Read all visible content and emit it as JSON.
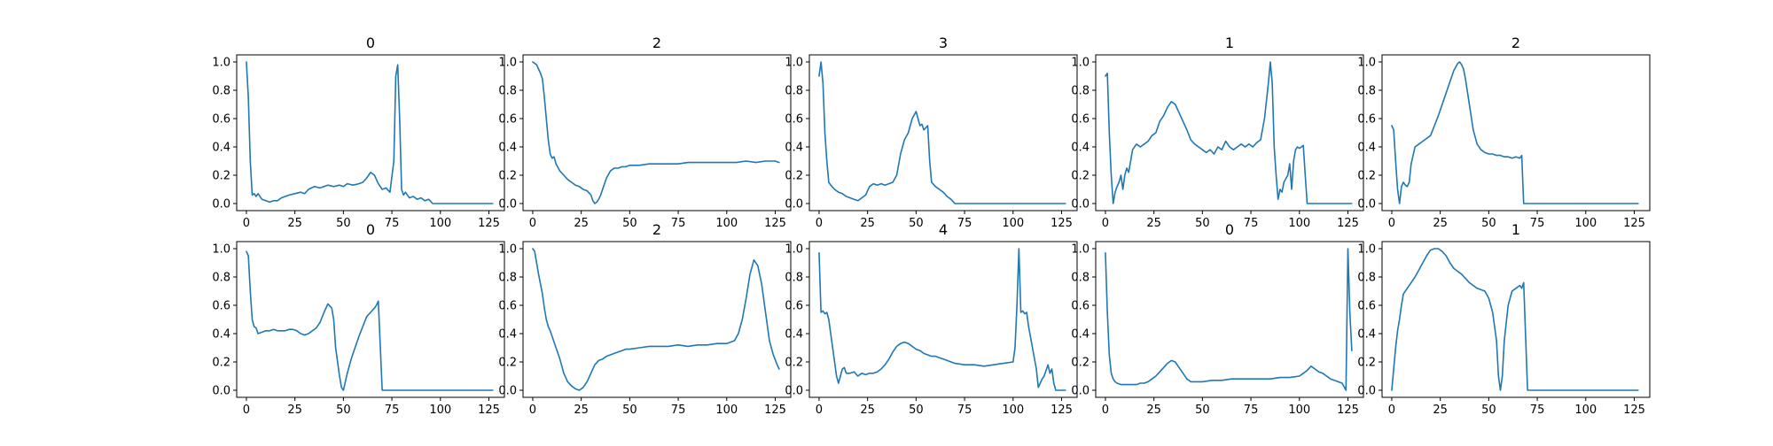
{
  "figure": {
    "background": "#ffffff",
    "line_color": "#1f77b4"
  },
  "chart_data": [
    {
      "type": "line",
      "title": "0",
      "xlim": [
        -5,
        133
      ],
      "ylim": [
        -0.05,
        1.05
      ],
      "xticks": [
        0,
        25,
        50,
        75,
        100,
        125
      ],
      "yticks": [
        0.0,
        0.2,
        0.4,
        0.6,
        0.8,
        1.0
      ],
      "x": [
        0,
        1,
        2,
        3,
        4,
        5,
        6,
        8,
        10,
        12,
        14,
        16,
        18,
        20,
        22,
        25,
        28,
        30,
        32,
        35,
        38,
        40,
        42,
        45,
        48,
        50,
        52,
        55,
        58,
        60,
        62,
        64,
        66,
        68,
        70,
        72,
        74,
        76,
        77,
        78,
        79,
        80,
        81,
        82,
        84,
        86,
        88,
        90,
        92,
        94,
        96,
        100,
        110,
        120,
        127
      ],
      "y": [
        1.0,
        0.75,
        0.3,
        0.06,
        0.07,
        0.05,
        0.07,
        0.03,
        0.02,
        0.01,
        0.02,
        0.02,
        0.04,
        0.05,
        0.06,
        0.07,
        0.08,
        0.07,
        0.1,
        0.12,
        0.11,
        0.12,
        0.13,
        0.12,
        0.13,
        0.12,
        0.14,
        0.13,
        0.14,
        0.15,
        0.18,
        0.22,
        0.2,
        0.14,
        0.1,
        0.11,
        0.08,
        0.3,
        0.9,
        0.98,
        0.6,
        0.1,
        0.06,
        0.08,
        0.04,
        0.05,
        0.03,
        0.04,
        0.02,
        0.03,
        0.0,
        0.0,
        0.0,
        0.0,
        0.0
      ]
    },
    {
      "type": "line",
      "title": "2",
      "xlim": [
        -5,
        133
      ],
      "ylim": [
        -0.05,
        1.05
      ],
      "xticks": [
        0,
        25,
        50,
        75,
        100,
        125
      ],
      "yticks": [
        0.0,
        0.2,
        0.4,
        0.6,
        0.8,
        1.0
      ],
      "x": [
        0,
        2,
        3,
        4,
        5,
        6,
        7,
        8,
        9,
        10,
        11,
        12,
        14,
        16,
        18,
        20,
        22,
        24,
        26,
        28,
        30,
        31,
        32,
        33,
        34,
        35,
        36,
        38,
        40,
        42,
        44,
        46,
        48,
        50,
        55,
        60,
        65,
        70,
        75,
        80,
        85,
        90,
        95,
        100,
        105,
        110,
        115,
        120,
        125,
        127
      ],
      "y": [
        1.0,
        0.98,
        0.95,
        0.92,
        0.88,
        0.75,
        0.6,
        0.45,
        0.35,
        0.32,
        0.33,
        0.28,
        0.23,
        0.2,
        0.17,
        0.15,
        0.13,
        0.12,
        0.1,
        0.09,
        0.06,
        0.02,
        0.0,
        0.01,
        0.03,
        0.06,
        0.1,
        0.18,
        0.23,
        0.25,
        0.25,
        0.26,
        0.26,
        0.27,
        0.27,
        0.28,
        0.28,
        0.28,
        0.28,
        0.29,
        0.29,
        0.29,
        0.29,
        0.29,
        0.29,
        0.3,
        0.29,
        0.3,
        0.3,
        0.29
      ]
    },
    {
      "type": "line",
      "title": "3",
      "xlim": [
        -5,
        133
      ],
      "ylim": [
        -0.05,
        1.05
      ],
      "xticks": [
        0,
        25,
        50,
        75,
        100,
        125
      ],
      "yticks": [
        0.0,
        0.2,
        0.4,
        0.6,
        0.8,
        1.0
      ],
      "x": [
        0,
        1,
        2,
        3,
        4,
        5,
        6,
        8,
        10,
        12,
        14,
        16,
        18,
        20,
        22,
        24,
        26,
        28,
        30,
        32,
        34,
        36,
        38,
        40,
        42,
        44,
        46,
        48,
        50,
        51,
        52,
        53,
        54,
        56,
        57,
        58,
        60,
        62,
        64,
        66,
        68,
        70,
        80,
        90,
        100,
        110,
        120,
        127
      ],
      "y": [
        0.9,
        1.0,
        0.85,
        0.5,
        0.3,
        0.15,
        0.13,
        0.1,
        0.08,
        0.07,
        0.05,
        0.04,
        0.03,
        0.02,
        0.04,
        0.06,
        0.12,
        0.14,
        0.13,
        0.14,
        0.13,
        0.14,
        0.15,
        0.2,
        0.35,
        0.45,
        0.5,
        0.6,
        0.65,
        0.6,
        0.55,
        0.56,
        0.52,
        0.55,
        0.3,
        0.15,
        0.12,
        0.1,
        0.08,
        0.05,
        0.03,
        0.0,
        0.0,
        0.0,
        0.0,
        0.0,
        0.0,
        0.0
      ]
    },
    {
      "type": "line",
      "title": "1",
      "xlim": [
        -5,
        133
      ],
      "ylim": [
        -0.05,
        1.05
      ],
      "xticks": [
        0,
        25,
        50,
        75,
        100,
        125
      ],
      "yticks": [
        0.0,
        0.2,
        0.4,
        0.6,
        0.8,
        1.0
      ],
      "x": [
        0,
        1,
        2,
        3,
        4,
        5,
        6,
        7,
        8,
        9,
        10,
        11,
        12,
        13,
        14,
        16,
        18,
        20,
        22,
        24,
        26,
        28,
        30,
        32,
        34,
        36,
        38,
        40,
        42,
        44,
        46,
        48,
        50,
        52,
        54,
        56,
        58,
        60,
        62,
        64,
        66,
        68,
        70,
        72,
        74,
        76,
        78,
        80,
        82,
        84,
        85,
        86,
        87,
        88,
        89,
        90,
        91,
        92,
        94,
        95,
        96,
        97,
        98,
        99,
        100,
        101,
        102,
        103,
        104,
        110,
        120,
        127
      ],
      "y": [
        0.9,
        0.92,
        0.5,
        0.2,
        0.0,
        0.08,
        0.12,
        0.15,
        0.2,
        0.1,
        0.2,
        0.25,
        0.22,
        0.3,
        0.38,
        0.42,
        0.4,
        0.42,
        0.44,
        0.48,
        0.5,
        0.58,
        0.62,
        0.68,
        0.72,
        0.7,
        0.64,
        0.58,
        0.52,
        0.45,
        0.42,
        0.4,
        0.38,
        0.36,
        0.38,
        0.35,
        0.4,
        0.38,
        0.44,
        0.4,
        0.38,
        0.4,
        0.42,
        0.4,
        0.42,
        0.4,
        0.43,
        0.45,
        0.6,
        0.85,
        1.0,
        0.85,
        0.4,
        0.2,
        0.03,
        0.1,
        0.08,
        0.15,
        0.2,
        0.28,
        0.1,
        0.3,
        0.38,
        0.4,
        0.39,
        0.4,
        0.41,
        0.2,
        0.0,
        0.0,
        0.0,
        0.0
      ]
    },
    {
      "type": "line",
      "title": "2",
      "xlim": [
        -5,
        133
      ],
      "ylim": [
        -0.05,
        1.05
      ],
      "xticks": [
        0,
        25,
        50,
        75,
        100,
        125
      ],
      "yticks": [
        0.0,
        0.2,
        0.4,
        0.6,
        0.8,
        1.0
      ],
      "x": [
        0,
        1,
        2,
        3,
        4,
        5,
        6,
        7,
        8,
        9,
        10,
        12,
        14,
        16,
        18,
        20,
        22,
        24,
        26,
        28,
        30,
        32,
        34,
        35,
        36,
        37,
        38,
        40,
        42,
        44,
        46,
        48,
        50,
        52,
        54,
        56,
        58,
        60,
        62,
        64,
        66,
        67,
        68,
        70,
        80,
        90,
        100,
        110,
        120,
        127
      ],
      "y": [
        0.55,
        0.52,
        0.3,
        0.1,
        0.0,
        0.12,
        0.15,
        0.13,
        0.12,
        0.15,
        0.28,
        0.4,
        0.42,
        0.44,
        0.46,
        0.48,
        0.55,
        0.62,
        0.7,
        0.78,
        0.86,
        0.94,
        0.99,
        1.0,
        0.98,
        0.95,
        0.88,
        0.7,
        0.52,
        0.42,
        0.38,
        0.36,
        0.35,
        0.35,
        0.34,
        0.34,
        0.33,
        0.33,
        0.32,
        0.33,
        0.32,
        0.34,
        0.0,
        0.0,
        0.0,
        0.0,
        0.0,
        0.0,
        0.0,
        0.0
      ]
    },
    {
      "type": "line",
      "title": "0",
      "xlim": [
        -5,
        133
      ],
      "ylim": [
        -0.05,
        1.05
      ],
      "xticks": [
        0,
        25,
        50,
        75,
        100,
        125
      ],
      "yticks": [
        0.0,
        0.2,
        0.4,
        0.6,
        0.8,
        1.0
      ],
      "x": [
        0,
        1,
        2,
        3,
        4,
        5,
        6,
        8,
        10,
        12,
        14,
        16,
        18,
        20,
        22,
        24,
        26,
        28,
        30,
        32,
        34,
        36,
        38,
        40,
        42,
        44,
        45,
        46,
        47,
        48,
        49,
        50,
        52,
        54,
        56,
        58,
        60,
        62,
        64,
        66,
        67,
        68,
        70,
        80,
        90,
        100,
        110,
        120,
        127
      ],
      "y": [
        0.98,
        0.95,
        0.7,
        0.5,
        0.45,
        0.44,
        0.4,
        0.41,
        0.42,
        0.42,
        0.43,
        0.42,
        0.42,
        0.42,
        0.43,
        0.43,
        0.42,
        0.4,
        0.39,
        0.4,
        0.42,
        0.44,
        0.48,
        0.55,
        0.61,
        0.58,
        0.5,
        0.3,
        0.2,
        0.1,
        0.02,
        0.0,
        0.12,
        0.22,
        0.3,
        0.38,
        0.45,
        0.52,
        0.55,
        0.58,
        0.6,
        0.63,
        0.0,
        0.0,
        0.0,
        0.0,
        0.0,
        0.0,
        0.0
      ]
    },
    {
      "type": "line",
      "title": "2",
      "xlim": [
        -5,
        133
      ],
      "ylim": [
        -0.05,
        1.05
      ],
      "xticks": [
        0,
        25,
        50,
        75,
        100,
        125
      ],
      "yticks": [
        0.0,
        0.2,
        0.4,
        0.6,
        0.8,
        1.0
      ],
      "x": [
        0,
        1,
        2,
        3,
        4,
        5,
        6,
        7,
        8,
        9,
        10,
        12,
        14,
        16,
        18,
        20,
        22,
        24,
        26,
        28,
        30,
        32,
        34,
        36,
        38,
        40,
        42,
        44,
        46,
        48,
        50,
        55,
        60,
        65,
        70,
        75,
        80,
        85,
        90,
        95,
        100,
        104,
        106,
        108,
        110,
        112,
        114,
        116,
        118,
        120,
        122,
        124,
        126,
        127
      ],
      "y": [
        1.0,
        0.98,
        0.9,
        0.82,
        0.75,
        0.68,
        0.58,
        0.5,
        0.45,
        0.42,
        0.38,
        0.3,
        0.22,
        0.12,
        0.06,
        0.03,
        0.01,
        0.0,
        0.02,
        0.06,
        0.12,
        0.18,
        0.21,
        0.22,
        0.24,
        0.25,
        0.26,
        0.27,
        0.28,
        0.29,
        0.29,
        0.3,
        0.31,
        0.31,
        0.31,
        0.32,
        0.31,
        0.32,
        0.32,
        0.33,
        0.33,
        0.35,
        0.4,
        0.5,
        0.65,
        0.82,
        0.92,
        0.88,
        0.75,
        0.55,
        0.35,
        0.25,
        0.18,
        0.15
      ]
    },
    {
      "type": "line",
      "title": "4",
      "xlim": [
        -5,
        133
      ],
      "ylim": [
        -0.05,
        1.05
      ],
      "xticks": [
        0,
        25,
        50,
        75,
        100,
        125
      ],
      "yticks": [
        0.0,
        0.2,
        0.4,
        0.6,
        0.8,
        1.0
      ],
      "x": [
        0,
        1,
        2,
        3,
        4,
        5,
        6,
        7,
        8,
        9,
        10,
        11,
        12,
        13,
        14,
        16,
        18,
        20,
        22,
        24,
        26,
        28,
        30,
        32,
        34,
        36,
        38,
        40,
        42,
        44,
        46,
        48,
        50,
        52,
        54,
        56,
        58,
        60,
        62,
        64,
        66,
        70,
        75,
        80,
        85,
        90,
        95,
        100,
        101,
        102,
        103,
        104,
        105,
        106,
        107,
        108,
        110,
        112,
        113,
        114,
        115,
        116,
        118,
        119,
        120,
        121,
        122,
        123,
        124,
        125,
        127
      ],
      "y": [
        0.97,
        0.55,
        0.56,
        0.54,
        0.55,
        0.5,
        0.4,
        0.3,
        0.2,
        0.1,
        0.05,
        0.1,
        0.15,
        0.16,
        0.12,
        0.12,
        0.13,
        0.1,
        0.12,
        0.11,
        0.12,
        0.12,
        0.13,
        0.15,
        0.18,
        0.22,
        0.27,
        0.31,
        0.33,
        0.34,
        0.33,
        0.31,
        0.29,
        0.28,
        0.26,
        0.25,
        0.24,
        0.24,
        0.23,
        0.22,
        0.21,
        0.19,
        0.18,
        0.18,
        0.17,
        0.18,
        0.19,
        0.2,
        0.3,
        0.6,
        1.0,
        0.55,
        0.56,
        0.54,
        0.55,
        0.45,
        0.3,
        0.15,
        0.02,
        0.05,
        0.08,
        0.1,
        0.18,
        0.12,
        0.15,
        0.05,
        0.0,
        0.0,
        0.0,
        0.0,
        0.0
      ]
    },
    {
      "type": "line",
      "title": "0",
      "xlim": [
        -5,
        133
      ],
      "ylim": [
        -0.05,
        1.05
      ],
      "xticks": [
        0,
        25,
        50,
        75,
        100,
        125
      ],
      "yticks": [
        0.0,
        0.2,
        0.4,
        0.6,
        0.8,
        1.0
      ],
      "x": [
        0,
        1,
        2,
        3,
        4,
        5,
        6,
        8,
        10,
        12,
        14,
        16,
        18,
        20,
        22,
        24,
        26,
        28,
        30,
        32,
        34,
        36,
        38,
        40,
        42,
        44,
        46,
        48,
        50,
        55,
        60,
        65,
        70,
        75,
        80,
        85,
        90,
        95,
        100,
        102,
        104,
        106,
        108,
        110,
        112,
        114,
        116,
        118,
        120,
        122,
        124,
        125,
        126,
        127
      ],
      "y": [
        0.97,
        0.55,
        0.25,
        0.12,
        0.08,
        0.06,
        0.05,
        0.04,
        0.04,
        0.04,
        0.04,
        0.04,
        0.05,
        0.05,
        0.06,
        0.08,
        0.1,
        0.13,
        0.16,
        0.19,
        0.21,
        0.2,
        0.16,
        0.12,
        0.08,
        0.06,
        0.06,
        0.06,
        0.06,
        0.07,
        0.07,
        0.08,
        0.08,
        0.08,
        0.08,
        0.08,
        0.09,
        0.09,
        0.1,
        0.12,
        0.14,
        0.17,
        0.15,
        0.13,
        0.12,
        0.1,
        0.08,
        0.07,
        0.06,
        0.05,
        0.0,
        1.0,
        0.55,
        0.28
      ]
    },
    {
      "type": "line",
      "title": "1",
      "xlim": [
        -5,
        133
      ],
      "ylim": [
        -0.05,
        1.05
      ],
      "xticks": [
        0,
        25,
        50,
        75,
        100,
        125
      ],
      "yticks": [
        0.0,
        0.2,
        0.4,
        0.6,
        0.8,
        1.0
      ],
      "x": [
        0,
        1,
        2,
        3,
        4,
        5,
        6,
        8,
        10,
        12,
        14,
        16,
        18,
        20,
        22,
        24,
        26,
        28,
        30,
        32,
        34,
        36,
        38,
        40,
        42,
        44,
        46,
        48,
        50,
        52,
        54,
        55,
        56,
        57,
        58,
        60,
        62,
        64,
        66,
        67,
        68,
        70,
        80,
        90,
        100,
        110,
        120,
        127
      ],
      "y": [
        0.0,
        0.15,
        0.3,
        0.42,
        0.5,
        0.6,
        0.68,
        0.72,
        0.76,
        0.8,
        0.85,
        0.9,
        0.95,
        0.99,
        1.0,
        1.0,
        0.98,
        0.95,
        0.9,
        0.86,
        0.84,
        0.82,
        0.79,
        0.76,
        0.74,
        0.72,
        0.71,
        0.7,
        0.65,
        0.55,
        0.35,
        0.1,
        0.0,
        0.1,
        0.35,
        0.6,
        0.7,
        0.72,
        0.74,
        0.72,
        0.76,
        0.0,
        0.0,
        0.0,
        0.0,
        0.0,
        0.0,
        0.0
      ]
    }
  ]
}
